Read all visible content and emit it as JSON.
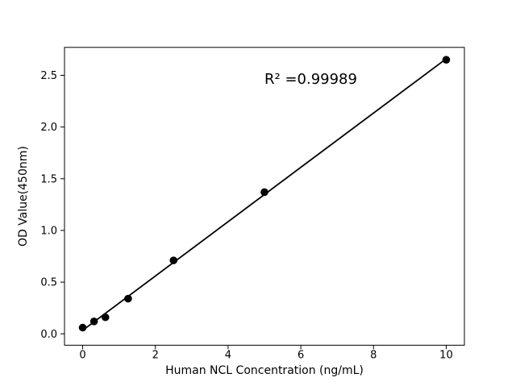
{
  "figure": {
    "background_color": "#ffffff",
    "foreground_color": "#000000"
  },
  "chart_data": {
    "type": "scatter",
    "title": "",
    "xlabel": "Human NCL Concentration (ng/mL)",
    "ylabel": "OD Value(450nm)",
    "annotation": "R² =0.99989",
    "r_squared": 0.99989,
    "x": [
      0,
      0.3125,
      0.625,
      1.25,
      2.5,
      5,
      10
    ],
    "y": [
      0.06,
      0.12,
      0.16,
      0.34,
      0.71,
      1.37,
      2.65
    ],
    "trend_line": {
      "x1": 0,
      "y1": 0.034,
      "x2": 10,
      "y2": 2.66
    },
    "xlim": [
      -0.5,
      10.5
    ],
    "ylim": [
      -0.11,
      2.77
    ],
    "x_ticks": [
      0,
      2,
      4,
      6,
      8,
      10
    ],
    "x_tick_labels": [
      "0",
      "2",
      "4",
      "6",
      "8",
      "10"
    ],
    "y_ticks": [
      0.0,
      0.5,
      1.0,
      1.5,
      2.0,
      2.5
    ],
    "y_tick_labels": [
      "0.0",
      "0.5",
      "1.0",
      "1.5",
      "2.0",
      "2.5"
    ],
    "grid": false,
    "legend_position": "none",
    "marker_color": "#000000",
    "line_color": "#000000"
  }
}
